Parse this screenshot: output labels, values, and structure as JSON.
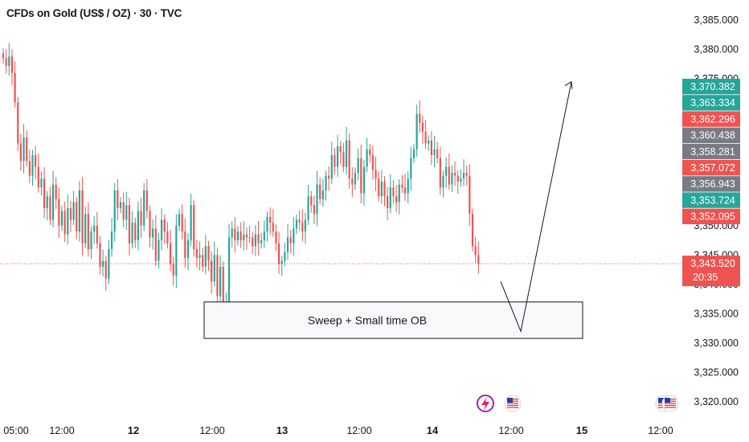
{
  "header": {
    "title": "CFDs on Gold (US$ / OZ) · 30 · TVC"
  },
  "colors": {
    "up": "#26a69a",
    "down": "#ef5350",
    "gray": "#787b86",
    "grid": "#ffffff",
    "price_line": "#ef5350"
  },
  "chart_data": {
    "type": "candlestick",
    "symbol": "CFDs on Gold (US$ / OZ)",
    "interval": "30",
    "source": "TVC",
    "y_ticks": [
      3320,
      3325,
      3330,
      3335,
      3340,
      3345,
      3350,
      3375,
      3380,
      3385
    ],
    "y_tick_labels": [
      "3,320.000",
      "3,325.000",
      "3,330.000",
      "3,335.000",
      "3,340.000",
      "3,345.000",
      "3,350.000",
      "3,375.000",
      "3,380.000",
      "3,385.000"
    ],
    "ylim": [
      3318,
      3387
    ],
    "x_ticks": [
      {
        "label": "05:00",
        "bold": false
      },
      {
        "label": "12:00",
        "bold": false
      },
      {
        "label": "12",
        "bold": true
      },
      {
        "label": "12:00",
        "bold": false
      },
      {
        "label": "13",
        "bold": true
      },
      {
        "label": "12:00",
        "bold": false
      },
      {
        "label": "14",
        "bold": true
      },
      {
        "label": "12:00",
        "bold": false
      },
      {
        "label": "15",
        "bold": true
      },
      {
        "label": "12:00",
        "bold": false
      }
    ],
    "candles_close": [
      3378.5,
      3377.2,
      3378.8,
      3376.0,
      3371.0,
      3364.0,
      3361.0,
      3365.0,
      3361.0,
      3358.5,
      3362.0,
      3360.0,
      3356.5,
      3358.0,
      3353.0,
      3355.0,
      3351.0,
      3357.0,
      3354.5,
      3350.0,
      3352.5,
      3348.5,
      3353.0,
      3351.0,
      3354.0,
      3349.0,
      3356.0,
      3347.0,
      3352.0,
      3346.0,
      3349.0,
      3350.0,
      3347.0,
      3343.0,
      3344.0,
      3341.0,
      3346.0,
      3349.0,
      3356.0,
      3353.0,
      3354.0,
      3351.0,
      3353.5,
      3347.0,
      3350.5,
      3347.5,
      3352.5,
      3350.0,
      3356.0,
      3352.5,
      3348.0,
      3349.5,
      3344.0,
      3347.5,
      3351.0,
      3349.0,
      3347.0,
      3343.5,
      3341.5,
      3350.0,
      3352.0,
      3349.0,
      3344.5,
      3347.5,
      3353.5,
      3346.0,
      3344.5,
      3345.0,
      3343.0,
      3346.5,
      3344.0,
      3340.5,
      3345.0,
      3338.0,
      3343.0,
      3335.5,
      3337.0,
      3348.0,
      3349.5,
      3347.5,
      3349.0,
      3347.5,
      3348.5,
      3348.0,
      3348.0,
      3346.5,
      3348.5,
      3347.0,
      3347.5,
      3349.0,
      3351.5,
      3350.5,
      3349.0,
      3347.0,
      3343.5,
      3344.0,
      3345.5,
      3348.0,
      3347.0,
      3349.5,
      3351.0,
      3350.5,
      3349.0,
      3351.0,
      3355.0,
      3353.5,
      3352.0,
      3357.0,
      3354.5,
      3356.0,
      3358.5,
      3358.0,
      3362.0,
      3360.0,
      3363.5,
      3362.5,
      3360.0,
      3364.5,
      3358.0,
      3357.0,
      3359.0,
      3361.5,
      3355.5,
      3360.0,
      3363.0,
      3362.0,
      3359.5,
      3358.0,
      3355.0,
      3357.5,
      3355.0,
      3353.0,
      3356.5,
      3355.0,
      3354.0,
      3357.0,
      3356.5,
      3355.5,
      3358.0,
      3361.5,
      3363.0,
      3369.0,
      3367.5,
      3366.0,
      3364.0,
      3364.5,
      3362.0,
      3363.0,
      3361.5,
      3356.5,
      3358.5,
      3360.0,
      3357.0,
      3359.0,
      3358.5,
      3357.5,
      3358.0,
      3359.0,
      3358.5,
      3352.0,
      3346.5,
      3345.0,
      3343.5
    ],
    "open_marker_candle": 0,
    "price_tags": [
      {
        "label": "3,370.382",
        "color": "up"
      },
      {
        "label": "3,363.334",
        "color": "up"
      },
      {
        "label": "3,362.296",
        "color": "down"
      },
      {
        "label": "3,360.438",
        "color": "gray"
      },
      {
        "label": "3,358.281",
        "color": "gray"
      },
      {
        "label": "3,357.072",
        "color": "down"
      },
      {
        "label": "3,356.943",
        "color": "gray"
      },
      {
        "label": "3,353.724",
        "color": "up"
      },
      {
        "label": "3,352.095",
        "color": "down"
      }
    ],
    "tag_values": [
      3370.382,
      3363.334,
      3362.296,
      3360.438,
      3358.281,
      3357.072,
      3356.943,
      3353.724,
      3352.095
    ],
    "current_price": {
      "label": "3,343.520",
      "countdown": "20:35",
      "value": 3343.52
    },
    "annotation_box": {
      "text": "Sweep + Small time OB",
      "top": 3337.0,
      "bottom": 3330.8
    },
    "projection": {
      "points": [
        [
          3340.5
        ],
        [
          3332.0
        ],
        [
          3374.5
        ]
      ]
    }
  }
}
